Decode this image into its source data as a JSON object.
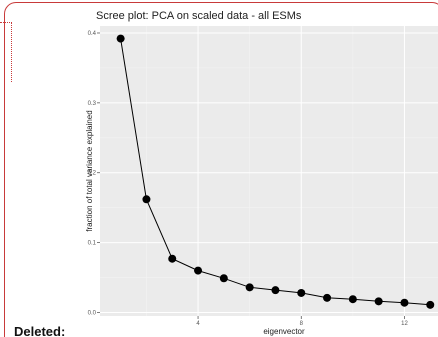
{
  "annotation": {
    "deleted_label": "Deleted:",
    "border_color": "#c83a3a"
  },
  "chart_data": {
    "type": "line",
    "title": "Scree plot: PCA on scaled data - all ESMs",
    "xlabel": "eigenvector",
    "ylabel": "fraction of total variance explained",
    "x": [
      1,
      2,
      3,
      4,
      5,
      6,
      7,
      8,
      9,
      10,
      11,
      12,
      13
    ],
    "y": [
      0.392,
      0.162,
      0.077,
      0.06,
      0.049,
      0.036,
      0.032,
      0.028,
      0.021,
      0.019,
      0.016,
      0.014,
      0.011
    ],
    "xticks": [
      4,
      8,
      12
    ],
    "xtick_labels": [
      "4",
      "8",
      "12"
    ],
    "yticks": [
      0.0,
      0.1,
      0.2,
      0.3,
      0.4
    ],
    "ytick_labels": [
      "0.0",
      "0.1",
      "0.2",
      "0.3",
      "0.4"
    ],
    "ylim": [
      -0.005,
      0.41
    ],
    "xlim": [
      0.2,
      13.3
    ],
    "grid": true,
    "colors": {
      "panel_background": "#ebebeb",
      "grid_major": "#ffffff",
      "line": "#000000",
      "point": "#000000"
    }
  }
}
